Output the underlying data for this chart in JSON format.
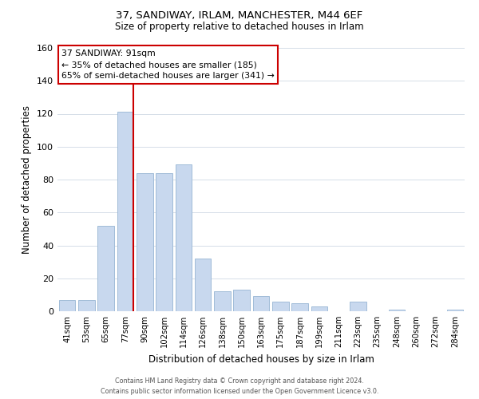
{
  "title": "37, SANDIWAY, IRLAM, MANCHESTER, M44 6EF",
  "subtitle": "Size of property relative to detached houses in Irlam",
  "xlabel": "Distribution of detached houses by size in Irlam",
  "ylabel": "Number of detached properties",
  "bar_labels": [
    "41sqm",
    "53sqm",
    "65sqm",
    "77sqm",
    "90sqm",
    "102sqm",
    "114sqm",
    "126sqm",
    "138sqm",
    "150sqm",
    "163sqm",
    "175sqm",
    "187sqm",
    "199sqm",
    "211sqm",
    "223sqm",
    "235sqm",
    "248sqm",
    "260sqm",
    "272sqm",
    "284sqm"
  ],
  "bar_values": [
    7,
    7,
    52,
    121,
    84,
    84,
    89,
    32,
    12,
    13,
    9,
    6,
    5,
    3,
    0,
    6,
    0,
    1,
    0,
    0,
    1
  ],
  "bar_color": "#c8d8ee",
  "bar_edge_color": "#a0bcd8",
  "vline_color": "#cc0000",
  "vline_index": 3,
  "ylim": [
    0,
    160
  ],
  "yticks": [
    0,
    20,
    40,
    60,
    80,
    100,
    120,
    140,
    160
  ],
  "annotation_title": "37 SANDIWAY: 91sqm",
  "annotation_line1": "← 35% of detached houses are smaller (185)",
  "annotation_line2": "65% of semi-detached houses are larger (341) →",
  "annotation_box_color": "#cc0000",
  "footer1": "Contains HM Land Registry data © Crown copyright and database right 2024.",
  "footer2": "Contains public sector information licensed under the Open Government Licence v3.0.",
  "background_color": "#ffffff",
  "grid_color": "#d5dde8"
}
